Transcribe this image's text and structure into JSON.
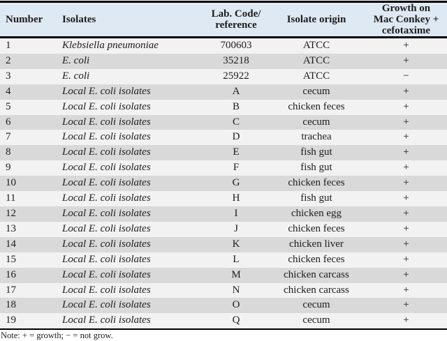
{
  "colors": {
    "header_bg": "#dfe9f3",
    "row_odd_bg": "#f2f2f2",
    "row_even_bg": "#d9d9d9",
    "border": "#000000",
    "text": "#1c1c1c"
  },
  "table": {
    "columns": [
      {
        "id": "number",
        "label": "Number"
      },
      {
        "id": "isolates",
        "label": "Isolates"
      },
      {
        "id": "lab_code",
        "label": "Lab. Code/\nreference"
      },
      {
        "id": "origin",
        "label": "Isolate origin"
      },
      {
        "id": "growth",
        "label": "Growth on\nMac Conkey +\ncefotaxime"
      }
    ],
    "rows": [
      {
        "number": "1",
        "isolate": "Klebsiella pneumoniae",
        "lab_code": "700603",
        "origin": "ATCC",
        "growth": "+"
      },
      {
        "number": "2",
        "isolate": "E. coli",
        "lab_code": "35218",
        "origin": "ATCC",
        "growth": "+"
      },
      {
        "number": "3",
        "isolate": "E. coli",
        "lab_code": "25922",
        "origin": "ATCC",
        "growth": "−"
      },
      {
        "number": "4",
        "isolate": "Local E. coli isolates",
        "lab_code": "A",
        "origin": "cecum",
        "growth": "+"
      },
      {
        "number": "5",
        "isolate": "Local E. coli isolates",
        "lab_code": "B",
        "origin": "chicken feces",
        "growth": "+"
      },
      {
        "number": "6",
        "isolate": "Local E. coli isolates",
        "lab_code": "C",
        "origin": "cecum",
        "growth": "+"
      },
      {
        "number": "7",
        "isolate": "Local E. coli isolates",
        "lab_code": "D",
        "origin": "trachea",
        "growth": "+"
      },
      {
        "number": "8",
        "isolate": "Local E. coli isolates",
        "lab_code": "E",
        "origin": "fish gut",
        "growth": "+"
      },
      {
        "number": "9",
        "isolate": "Local E. coli isolates",
        "lab_code": "F",
        "origin": "fish gut",
        "growth": "+"
      },
      {
        "number": "10",
        "isolate": "Local E. coli isolates",
        "lab_code": "G",
        "origin": "chicken feces",
        "growth": "+"
      },
      {
        "number": "11",
        "isolate": "Local E. coli isolates",
        "lab_code": "H",
        "origin": "fish gut",
        "growth": "+"
      },
      {
        "number": "12",
        "isolate": "Local E. coli isolates",
        "lab_code": "I",
        "origin": "chicken egg",
        "growth": "+"
      },
      {
        "number": "13",
        "isolate": "Local E. coli isolates",
        "lab_code": "J",
        "origin": "chicken feces",
        "growth": "+"
      },
      {
        "number": "14",
        "isolate": "Local E. coli isolates",
        "lab_code": "K",
        "origin": "chicken liver",
        "growth": "+"
      },
      {
        "number": "15",
        "isolate": "Local E. coli isolates",
        "lab_code": "L",
        "origin": "chicken feces",
        "growth": "+"
      },
      {
        "number": "16",
        "isolate": "Local E. coli isolates",
        "lab_code": "M",
        "origin": "chicken carcass",
        "growth": "+"
      },
      {
        "number": "17",
        "isolate": "Local E. coli isolates",
        "lab_code": "N",
        "origin": "chicken carcass",
        "growth": "+"
      },
      {
        "number": "18",
        "isolate": "Local E. coli isolates",
        "lab_code": "O",
        "origin": "cecum",
        "growth": "+"
      },
      {
        "number": "19",
        "isolate": "Local E. coli isolates",
        "lab_code": "Q",
        "origin": "cecum",
        "growth": "+"
      }
    ]
  },
  "note": "Note: + = growth; − = not grow."
}
